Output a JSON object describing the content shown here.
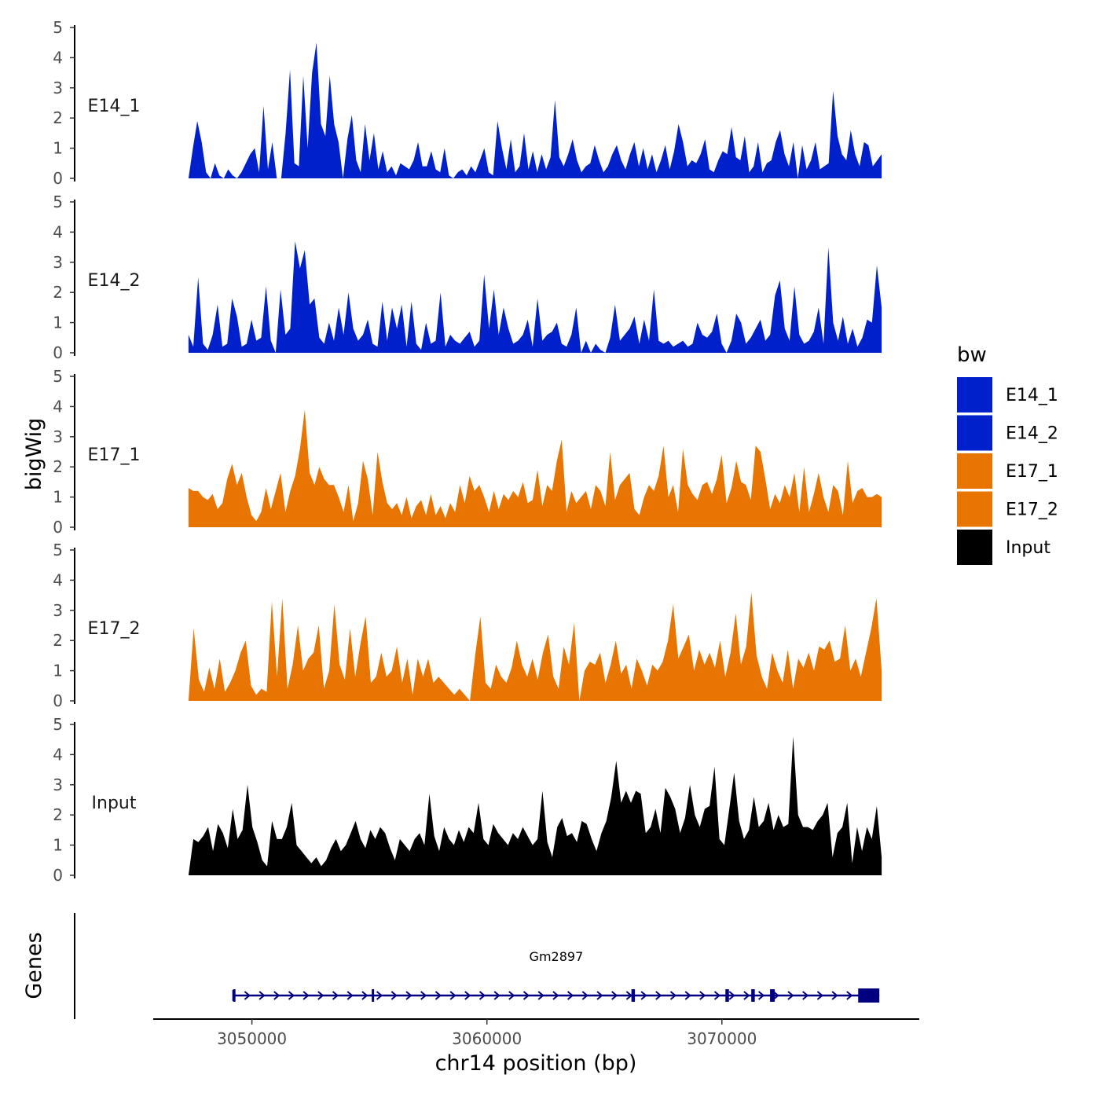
{
  "chart_data": {
    "type": "area",
    "ylabel": "bigWig",
    "xlabel": "chr14 position (bp)",
    "genes_label": "Genes",
    "xlim": [
      3045800,
      3078400
    ],
    "data_range": [
      3047300,
      3076800
    ],
    "ylim": [
      0,
      5
    ],
    "yticks": [
      "0",
      "1",
      "2",
      "3",
      "4",
      "5"
    ],
    "xticks": [
      {
        "value": 3050000,
        "label": "3050000"
      },
      {
        "value": 3060000,
        "label": "3060000"
      },
      {
        "value": 3070000,
        "label": "3070000"
      }
    ],
    "legend": {
      "title": "bw",
      "entries": [
        {
          "label": "E14_1",
          "color": "#0020CC"
        },
        {
          "label": "E14_2",
          "color": "#0020CC"
        },
        {
          "label": "E17_1",
          "color": "#E87502"
        },
        {
          "label": "E17_2",
          "color": "#E87502"
        },
        {
          "label": "Input",
          "color": "#000000"
        }
      ]
    },
    "series": [
      {
        "name": "E14_1",
        "color": "#0020CC",
        "values": [
          0.0,
          1.0,
          1.9,
          1.2,
          0.2,
          0.0,
          0.5,
          0.1,
          0.0,
          0.3,
          0.1,
          0.0,
          0.2,
          0.5,
          0.8,
          1.0,
          0.2,
          2.4,
          0.3,
          1.2,
          0.0,
          0.0,
          1.5,
          3.6,
          0.5,
          0.4,
          3.4,
          1.0,
          3.5,
          4.5,
          1.8,
          1.4,
          3.4,
          1.8,
          1.2,
          0.0,
          1.3,
          2.1,
          0.6,
          0.2,
          1.8,
          0.6,
          1.5,
          0.3,
          0.9,
          0.2,
          0.4,
          0.1,
          0.5,
          0.4,
          0.3,
          0.6,
          1.2,
          0.4,
          0.4,
          0.9,
          0.3,
          0.2,
          1.0,
          0.1,
          0.0,
          0.2,
          0.3,
          0.1,
          0.4,
          0.2,
          0.6,
          1.0,
          0.2,
          0.1,
          1.9,
          1.0,
          0.3,
          1.3,
          0.2,
          0.4,
          1.5,
          0.3,
          0.9,
          0.2,
          0.8,
          0.3,
          0.7,
          2.6,
          0.7,
          0.4,
          0.8,
          1.3,
          0.6,
          0.2,
          0.4,
          0.5,
          1.1,
          0.6,
          0.2,
          0.4,
          0.8,
          1.1,
          0.6,
          0.3,
          0.8,
          1.2,
          0.4,
          1.0,
          0.3,
          0.8,
          0.2,
          0.6,
          1.1,
          0.3,
          0.9,
          1.8,
          1.2,
          0.4,
          0.6,
          0.5,
          0.8,
          1.3,
          0.3,
          0.2,
          0.6,
          0.9,
          0.8,
          1.7,
          0.7,
          0.6,
          1.4,
          0.2,
          0.4,
          1.2,
          0.2,
          0.5,
          0.6,
          1.2,
          1.6,
          0.8,
          0.4,
          1.2,
          0.0,
          1.1,
          0.3,
          0.6,
          1.2,
          0.3,
          0.4,
          0.5,
          2.9,
          1.4,
          0.8,
          0.6,
          1.6,
          0.8,
          0.4,
          1.2,
          1.1,
          0.4,
          0.6,
          0.8
        ]
      },
      {
        "name": "E14_2",
        "color": "#0020CC",
        "values": [
          0.6,
          0.2,
          2.5,
          0.3,
          0.1,
          0.6,
          1.6,
          0.2,
          0.3,
          1.8,
          1.2,
          0.2,
          0.3,
          1.1,
          0.4,
          0.5,
          2.2,
          0.4,
          0.0,
          2.1,
          0.6,
          0.8,
          3.7,
          2.8,
          3.4,
          1.6,
          1.8,
          0.5,
          0.3,
          1.0,
          0.4,
          1.5,
          0.6,
          2.0,
          0.8,
          0.4,
          0.6,
          1.1,
          0.3,
          0.2,
          1.7,
          0.4,
          1.5,
          0.8,
          1.6,
          0.2,
          1.7,
          0.3,
          0.1,
          1.0,
          0.3,
          0.4,
          2.0,
          0.2,
          0.6,
          0.4,
          0.3,
          0.5,
          0.7,
          0.2,
          0.4,
          2.6,
          0.8,
          2.1,
          0.6,
          1.5,
          0.8,
          0.3,
          0.4,
          0.6,
          1.1,
          0.2,
          1.8,
          0.4,
          0.6,
          0.7,
          1.0,
          0.3,
          0.2,
          0.6,
          1.5,
          0.0,
          0.4,
          0.0,
          0.3,
          0.1,
          0.0,
          0.5,
          1.6,
          0.4,
          0.6,
          0.8,
          1.2,
          0.3,
          1.1,
          0.4,
          2.1,
          0.4,
          0.3,
          0.4,
          0.2,
          0.3,
          0.4,
          0.2,
          0.3,
          1.0,
          0.6,
          0.5,
          0.7,
          1.3,
          0.3,
          0.0,
          0.4,
          1.3,
          1.0,
          0.3,
          0.5,
          0.8,
          1.1,
          0.4,
          0.6,
          1.9,
          2.4,
          0.8,
          0.4,
          2.2,
          0.6,
          0.3,
          0.4,
          0.7,
          1.5,
          0.3,
          3.5,
          1.0,
          0.4,
          1.2,
          0.3,
          0.8,
          0.2,
          0.5,
          1.1,
          1.0,
          2.9,
          1.5
        ]
      },
      {
        "name": "E17_1",
        "color": "#E87502",
        "values": [
          1.3,
          1.2,
          1.2,
          1.0,
          0.9,
          1.1,
          0.6,
          0.8,
          1.6,
          2.1,
          1.4,
          1.8,
          1.0,
          0.4,
          0.2,
          0.5,
          1.3,
          0.6,
          1.2,
          1.8,
          0.5,
          1.2,
          1.7,
          2.6,
          3.9,
          1.8,
          1.4,
          2.0,
          1.6,
          1.4,
          1.4,
          1.0,
          0.5,
          1.4,
          0.2,
          0.8,
          2.2,
          1.6,
          0.4,
          2.5,
          1.5,
          0.8,
          0.6,
          0.8,
          0.4,
          1.0,
          0.3,
          0.7,
          0.9,
          0.4,
          1.1,
          0.4,
          0.7,
          0.3,
          0.8,
          0.5,
          1.4,
          0.8,
          1.7,
          1.2,
          1.4,
          1.0,
          0.5,
          1.2,
          0.6,
          1.1,
          0.9,
          1.2,
          1.0,
          1.5,
          0.8,
          0.9,
          1.9,
          0.7,
          1.4,
          1.2,
          2.2,
          2.9,
          0.5,
          1.2,
          0.8,
          1.0,
          1.2,
          0.6,
          1.4,
          1.2,
          0.7,
          2.5,
          0.9,
          1.4,
          1.6,
          1.8,
          0.6,
          0.4,
          1.0,
          1.4,
          1.2,
          1.7,
          2.7,
          1.0,
          1.4,
          0.5,
          2.6,
          1.4,
          1.1,
          0.9,
          1.4,
          1.5,
          1.1,
          1.6,
          2.4,
          0.8,
          1.3,
          2.2,
          1.5,
          1.4,
          0.9,
          2.7,
          2.5,
          1.6,
          0.6,
          1.1,
          0.8,
          1.4,
          1.0,
          1.8,
          0.5,
          2.0,
          0.5,
          1.1,
          1.8,
          1.0,
          0.5,
          1.4,
          1.2,
          0.4,
          2.2,
          0.8,
          1.2,
          1.3,
          1.0,
          1.0,
          1.1,
          1.0
        ]
      },
      {
        "name": "E17_2",
        "color": "#E87502",
        "values": [
          0.0,
          2.4,
          0.7,
          0.3,
          1.1,
          0.4,
          1.4,
          0.3,
          0.6,
          1.0,
          1.6,
          2.0,
          0.5,
          0.2,
          0.4,
          0.3,
          3.3,
          0.8,
          3.4,
          0.4,
          1.2,
          2.5,
          1.0,
          1.4,
          1.6,
          2.5,
          0.4,
          1.0,
          3.2,
          1.2,
          0.7,
          2.4,
          0.8,
          1.9,
          2.8,
          0.6,
          0.8,
          1.6,
          0.8,
          1.0,
          1.8,
          0.6,
          1.4,
          0.2,
          1.4,
          0.8,
          1.4,
          0.6,
          0.8,
          0.6,
          0.4,
          0.2,
          0.4,
          0.2,
          0.0,
          1.5,
          2.8,
          0.6,
          0.4,
          1.2,
          0.8,
          0.6,
          1.1,
          2.0,
          1.2,
          0.8,
          1.4,
          0.7,
          1.6,
          2.2,
          0.8,
          0.4,
          1.8,
          1.2,
          2.6,
          0.0,
          1.0,
          1.3,
          1.2,
          1.6,
          0.6,
          1.2,
          2.0,
          0.9,
          1.2,
          0.4,
          1.4,
          1.0,
          0.5,
          1.2,
          1.0,
          1.3,
          2.0,
          3.2,
          1.4,
          1.8,
          2.2,
          1.0,
          1.7,
          1.2,
          1.6,
          1.1,
          2.0,
          0.8,
          1.6,
          2.9,
          1.2,
          1.8,
          3.6,
          1.5,
          0.8,
          0.4,
          1.6,
          1.0,
          0.6,
          1.7,
          0.4,
          1.4,
          1.1,
          1.6,
          1.0,
          1.8,
          1.7,
          2.0,
          1.3,
          1.4,
          2.5,
          1.0,
          1.4,
          0.8,
          1.6,
          2.4,
          3.4,
          1.0
        ]
      },
      {
        "name": "Input",
        "color": "#000000",
        "values": [
          0.0,
          1.2,
          1.1,
          1.3,
          1.6,
          0.8,
          1.7,
          1.4,
          0.9,
          2.2,
          1.2,
          1.5,
          3.0,
          1.6,
          1.1,
          0.5,
          0.3,
          1.8,
          1.2,
          1.2,
          1.6,
          2.4,
          1.0,
          0.8,
          0.6,
          0.4,
          0.6,
          0.3,
          0.5,
          0.9,
          1.2,
          0.8,
          1.0,
          1.4,
          1.8,
          1.2,
          0.9,
          1.5,
          1.2,
          1.6,
          1.4,
          0.9,
          0.5,
          1.2,
          1.0,
          0.8,
          1.2,
          1.4,
          1.0,
          2.7,
          1.3,
          0.8,
          1.6,
          1.2,
          1.0,
          1.5,
          1.1,
          1.6,
          1.4,
          2.4,
          1.2,
          1.0,
          1.7,
          1.4,
          1.2,
          1.0,
          1.4,
          1.2,
          1.6,
          1.3,
          1.0,
          1.2,
          2.8,
          1.1,
          0.6,
          1.6,
          1.9,
          1.3,
          1.4,
          1.1,
          1.8,
          1.7,
          1.2,
          0.8,
          1.4,
          1.8,
          2.6,
          3.8,
          2.4,
          2.8,
          2.4,
          2.8,
          2.7,
          1.4,
          1.6,
          2.2,
          1.4,
          2.9,
          2.6,
          2.2,
          1.4,
          1.9,
          3.0,
          2.0,
          1.6,
          2.2,
          2.3,
          3.6,
          1.2,
          1.0,
          2.2,
          3.4,
          1.8,
          1.2,
          1.5,
          2.6,
          1.6,
          1.8,
          2.4,
          1.5,
          2.0,
          1.6,
          1.7,
          4.6,
          2.0,
          1.6,
          1.6,
          1.5,
          1.8,
          2.0,
          2.4,
          0.6,
          1.4,
          1.6,
          2.4,
          0.4,
          1.6,
          0.8,
          1.6,
          1.2,
          2.3,
          0.6
        ]
      }
    ],
    "gene": {
      "name": "Gm2897",
      "start": 3049200,
      "end": 3076700,
      "strand": "+",
      "color": "#000080",
      "exons": [
        [
          3049200,
          3049300
        ],
        [
          3055100,
          3055200
        ],
        [
          3066150,
          3066300
        ],
        [
          3070150,
          3070300
        ],
        [
          3071250,
          3071400
        ],
        [
          3072050,
          3072250
        ],
        [
          3075800,
          3076700
        ]
      ]
    }
  }
}
